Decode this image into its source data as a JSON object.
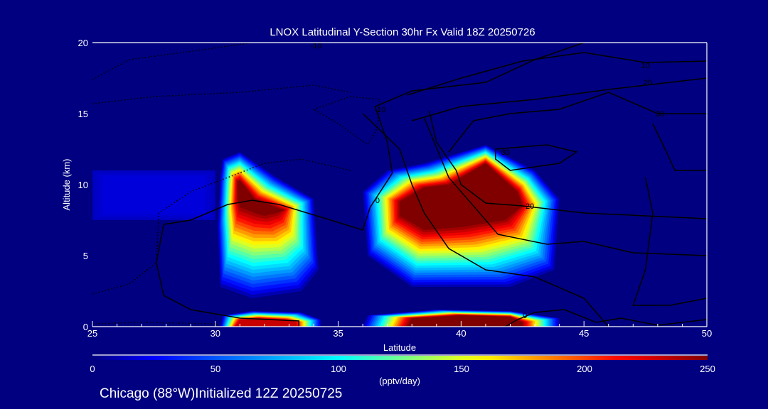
{
  "chart_data": {
    "type": "heatmap",
    "title": "LNOX Latitudinal Y-Section 30hr  Fx Valid 18Z 20250726",
    "xlabel": "Latitude",
    "ylabel": "Altitude (km)",
    "xlim": [
      25,
      50
    ],
    "ylim": [
      0,
      20
    ],
    "xticks": [
      25,
      30,
      35,
      40,
      45,
      50
    ],
    "yticks": [
      0,
      5,
      10,
      15,
      20
    ],
    "colorbar": {
      "range": [
        0,
        250
      ],
      "ticks": [
        0,
        50,
        100,
        150,
        200,
        250
      ],
      "label": "(pptv/day)",
      "colormap": [
        [
          0,
          "#000080"
        ],
        [
          0.1,
          "#0000ff"
        ],
        [
          0.4,
          "#00ffff"
        ],
        [
          0.63,
          "#ffff00"
        ],
        [
          0.86,
          "#ff0000"
        ],
        [
          1,
          "#800000"
        ]
      ]
    },
    "footer": "Chicago (88°W)Initialized 12Z 20250725",
    "background_color": "#000080",
    "heat_regions": [
      {
        "name": "storm-30N-upper",
        "peak": 250,
        "base": 10,
        "outer": [
          [
            30.3,
            11.8
          ],
          [
            31,
            12.3
          ],
          [
            32.5,
            10.5
          ],
          [
            34,
            9
          ],
          [
            34.2,
            4
          ],
          [
            33.5,
            2.5
          ],
          [
            31.5,
            2
          ],
          [
            30.2,
            2.8
          ],
          [
            30.1,
            7
          ],
          [
            30.2,
            10.5
          ]
        ],
        "core": [
          [
            30.9,
            10.2
          ],
          [
            31,
            10.3
          ],
          [
            31.6,
            9
          ],
          [
            32.8,
            8.2
          ],
          [
            32.5,
            8
          ],
          [
            32,
            7.8
          ],
          [
            31.6,
            8
          ],
          [
            31,
            8.4
          ],
          [
            30.9,
            9
          ],
          [
            30.9,
            9.5
          ]
        ]
      },
      {
        "name": "storm-40N-upper",
        "peak": 250,
        "base": 10,
        "outer": [
          [
            36,
            9.5
          ],
          [
            37,
            11
          ],
          [
            38.5,
            11.5
          ],
          [
            41,
            12.8
          ],
          [
            43,
            11
          ],
          [
            44,
            9
          ],
          [
            43.8,
            4
          ],
          [
            42,
            2.8
          ],
          [
            38,
            2.8
          ],
          [
            36.2,
            5
          ]
        ],
        "core": [
          [
            37.5,
            8.8
          ],
          [
            38.5,
            9.8
          ],
          [
            39.5,
            10
          ],
          [
            41,
            11.5
          ],
          [
            42.3,
            9.5
          ],
          [
            42.5,
            8.5
          ],
          [
            41.8,
            7.5
          ],
          [
            40,
            7
          ],
          [
            38.5,
            6.8
          ],
          [
            37.5,
            7.8
          ]
        ]
      },
      {
        "name": "surface-31N",
        "peak": 230,
        "base": 10,
        "outer": [
          [
            30.2,
            0
          ],
          [
            30.3,
            0.8
          ],
          [
            31.5,
            1.1
          ],
          [
            33.5,
            1
          ],
          [
            34.3,
            0.5
          ],
          [
            34.3,
            0
          ]
        ],
        "core": [
          [
            30.8,
            0
          ],
          [
            31,
            0.5
          ],
          [
            31.8,
            0.6
          ],
          [
            32.8,
            0.5
          ],
          [
            33.3,
            0.3
          ],
          [
            33.3,
            0
          ]
        ]
      },
      {
        "name": "surface-40N",
        "peak": 250,
        "base": 10,
        "outer": [
          [
            36,
            0
          ],
          [
            36.2,
            0.8
          ],
          [
            39,
            1.2
          ],
          [
            42,
            1.1
          ],
          [
            44,
            0.6
          ],
          [
            44,
            0
          ]
        ],
        "core": [
          [
            37.8,
            0
          ],
          [
            38,
            0.6
          ],
          [
            40,
            0.8
          ],
          [
            42,
            0.7
          ],
          [
            42.5,
            0.3
          ],
          [
            42.5,
            0
          ]
        ]
      },
      {
        "name": "faint-west",
        "peak": 18,
        "base": 12,
        "outer": [
          [
            25,
            11
          ],
          [
            30,
            11
          ],
          [
            30,
            7.5
          ],
          [
            25,
            7.5
          ]
        ],
        "core": [
          [
            25.5,
            10.5
          ],
          [
            29.5,
            10.5
          ],
          [
            29.5,
            8
          ],
          [
            25.5,
            8
          ]
        ]
      }
    ],
    "contours": [
      {
        "label": "0",
        "label_at": [
          36.6,
          8.9
        ],
        "dashed": false,
        "points": [
          [
            33.4,
            0
          ],
          [
            33.4,
            0.4
          ],
          [
            31,
            0.6
          ],
          [
            29,
            1.2
          ],
          [
            27.9,
            2.2
          ],
          [
            27.6,
            4.5
          ],
          [
            27.9,
            7.2
          ],
          [
            29,
            7.5
          ],
          [
            30.5,
            8.6
          ],
          [
            31.5,
            8.9
          ],
          [
            32.6,
            8.6
          ],
          [
            34.7,
            7.5
          ],
          [
            36,
            6.8
          ],
          [
            36.3,
            8.4
          ],
          [
            37.2,
            10.8
          ],
          [
            37,
            13
          ],
          [
            36.5,
            15.5
          ],
          [
            38,
            16.6
          ],
          [
            41,
            17.2
          ],
          [
            43,
            18.8
          ],
          [
            45,
            20
          ]
        ]
      },
      {
        "label": "0",
        "label_at": [
          42.6,
          0.8
        ],
        "dashed": false,
        "points": [
          [
            41.8,
            0
          ],
          [
            42.3,
            0.5
          ],
          [
            43,
            1
          ],
          [
            44.2,
            1.2
          ],
          [
            45.5,
            0.3
          ],
          [
            46.5,
            0.6
          ],
          [
            48,
            0.1
          ],
          [
            50,
            0.5
          ]
        ]
      },
      {
        "label": "10",
        "label_at": [
          47.5,
          18.4
        ],
        "dashed": false,
        "points": [
          [
            37.8,
            16.3
          ],
          [
            40,
            17.5
          ],
          [
            42.5,
            18.7
          ],
          [
            45,
            19.3
          ],
          [
            47.5,
            18.6
          ],
          [
            50,
            18.7
          ]
        ]
      },
      {
        "label": "20",
        "label_at": [
          47.6,
          17.2
        ],
        "dashed": false,
        "points": [
          [
            38,
            14.5
          ],
          [
            40,
            15.5
          ],
          [
            43,
            16
          ],
          [
            46,
            16.7
          ],
          [
            48,
            17.1
          ],
          [
            50,
            17.5
          ]
        ]
      },
      {
        "label": "30",
        "label_at": [
          48.1,
          15
        ],
        "dashed": false,
        "points": [
          [
            39.5,
            12.3
          ],
          [
            40.5,
            14.5
          ],
          [
            42,
            15
          ],
          [
            44,
            15.3
          ],
          [
            46,
            16.5
          ],
          [
            48,
            15
          ],
          [
            50,
            15
          ]
        ]
      },
      {
        "label": "30",
        "label_at": [
          41.8,
          12.3
        ],
        "dashed": false,
        "points": [
          [
            41.4,
            12.5
          ],
          [
            43.5,
            12.8
          ],
          [
            44.7,
            12.3
          ],
          [
            44,
            11.5
          ],
          [
            42,
            11
          ],
          [
            41.4,
            11.8
          ],
          [
            41.4,
            12.5
          ]
        ]
      },
      {
        "label": "20",
        "label_at": [
          42.8,
          8.5
        ],
        "dashed": false,
        "points": [
          [
            38.7,
            15.2
          ],
          [
            39,
            13
          ],
          [
            39.8,
            11
          ],
          [
            40,
            10
          ],
          [
            41,
            8.7
          ],
          [
            42.5,
            8.5
          ],
          [
            45,
            8
          ],
          [
            50,
            7.6
          ]
        ]
      },
      {
        "label": "",
        "label_at": null,
        "dashed": false,
        "points": [
          [
            36,
            15
          ],
          [
            37.5,
            12.5
          ],
          [
            38,
            10
          ],
          [
            38.5,
            8
          ],
          [
            39.5,
            5.5
          ],
          [
            41,
            4
          ],
          [
            43,
            3.5
          ],
          [
            45,
            2
          ],
          [
            46,
            0
          ]
        ]
      },
      {
        "label": "",
        "label_at": null,
        "dashed": false,
        "points": [
          [
            38.5,
            14.7
          ],
          [
            39.5,
            10.5
          ],
          [
            40.5,
            8.5
          ],
          [
            41.5,
            6.5
          ],
          [
            43.5,
            5.8
          ],
          [
            45,
            6
          ],
          [
            47,
            5.2
          ],
          [
            50,
            5
          ]
        ]
      },
      {
        "label": "",
        "label_at": null,
        "dashed": false,
        "points": [
          [
            47.8,
            14.3
          ],
          [
            48.3,
            12.5
          ],
          [
            48.7,
            11
          ],
          [
            50,
            11
          ]
        ]
      },
      {
        "label": "",
        "label_at": null,
        "dashed": false,
        "points": [
          [
            47.5,
            10.5
          ],
          [
            47.8,
            8
          ],
          [
            47.5,
            4
          ],
          [
            47,
            1.5
          ],
          [
            48.5,
            1.5
          ],
          [
            50,
            2
          ]
        ]
      },
      {
        "label": "-10",
        "label_at": [
          34.1,
          19.8
        ],
        "dashed": true,
        "points": [
          [
            25,
            17.4
          ],
          [
            26.5,
            18.8
          ],
          [
            29.5,
            19.5
          ],
          [
            31.5,
            20
          ]
        ]
      },
      {
        "label": "",
        "label_at": null,
        "dashed": true,
        "points": [
          [
            25,
            15.7
          ],
          [
            27.5,
            16.2
          ],
          [
            31,
            16.5
          ],
          [
            34,
            17
          ],
          [
            35.5,
            16.5
          ]
        ]
      },
      {
        "label": "",
        "label_at": null,
        "dashed": true,
        "points": [
          [
            25,
            2.3
          ],
          [
            26.5,
            3
          ],
          [
            27.6,
            4.5
          ],
          [
            27.7,
            8
          ],
          [
            29,
            9.5
          ],
          [
            30.5,
            10.5
          ],
          [
            32,
            11.5
          ],
          [
            33.5,
            11.8
          ],
          [
            35.5,
            11
          ]
        ]
      },
      {
        "label": "-10",
        "label_at": [
          36.7,
          15.3
        ],
        "dashed": true,
        "points": [
          [
            34,
            15.3
          ],
          [
            35.5,
            16.2
          ],
          [
            36.7,
            16
          ],
          [
            36.6,
            14
          ],
          [
            36.2,
            12.8
          ],
          [
            35,
            14.3
          ],
          [
            34,
            15.3
          ]
        ]
      },
      {
        "label": "",
        "label_at": null,
        "dashed": true,
        "points": [
          [
            25,
            0.2
          ],
          [
            27,
            0.3
          ],
          [
            30,
            0.2
          ],
          [
            30.2,
            0
          ]
        ]
      }
    ]
  }
}
